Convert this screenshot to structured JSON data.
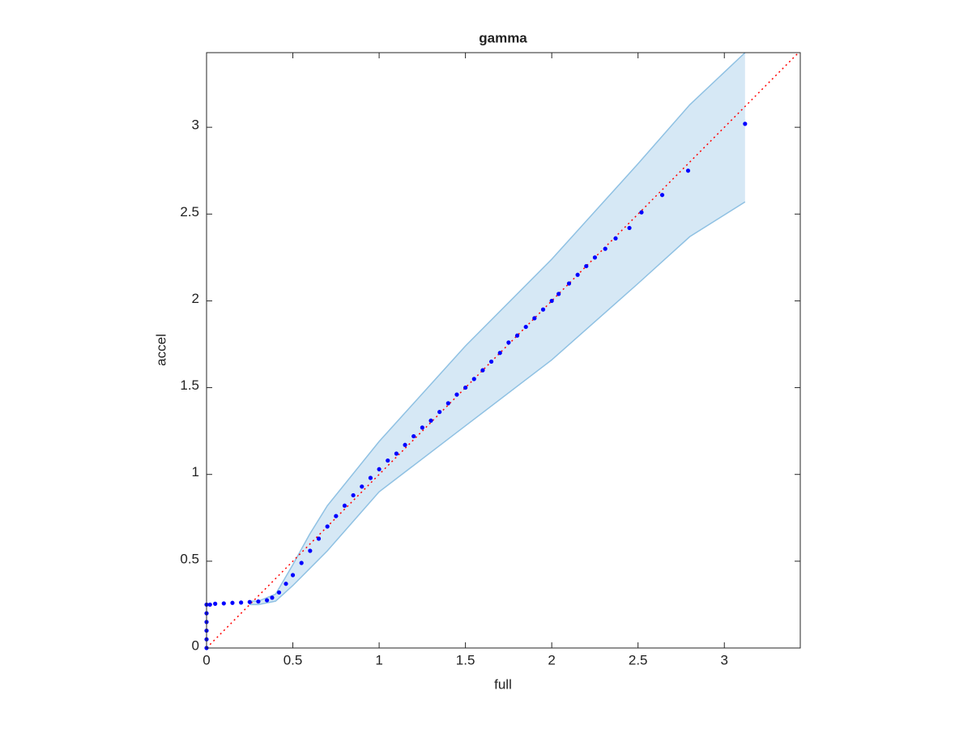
{
  "chart_data": {
    "type": "scatter",
    "title": "gamma",
    "x_label": "full",
    "y_label": "accel",
    "xlim": [
      0,
      3.44
    ],
    "ylim": [
      0,
      3.43
    ],
    "xticks": [
      0,
      0.5,
      1,
      1.5,
      2,
      2.5,
      3
    ],
    "yticks": [
      0,
      0.5,
      1,
      1.5,
      2,
      2.5,
      3
    ],
    "grid": false,
    "box": true,
    "points": {
      "color": "#0000ff",
      "x": [
        0,
        0,
        0,
        0,
        0,
        0,
        0.02,
        0.05,
        0.1,
        0.15,
        0.2,
        0.25,
        0.3,
        0.35,
        0.38,
        0.42,
        0.46,
        0.5,
        0.55,
        0.6,
        0.65,
        0.7,
        0.75,
        0.8,
        0.85,
        0.9,
        0.95,
        1.0,
        1.05,
        1.1,
        1.15,
        1.2,
        1.25,
        1.3,
        1.35,
        1.4,
        1.45,
        1.5,
        1.55,
        1.6,
        1.65,
        1.7,
        1.75,
        1.8,
        1.85,
        1.9,
        1.95,
        2.0,
        2.04,
        2.1,
        2.15,
        2.2,
        2.25,
        2.31,
        2.37,
        2.45,
        2.52,
        2.64,
        2.79,
        3.12
      ],
      "y": [
        0,
        0.05,
        0.1,
        0.15,
        0.2,
        0.25,
        0.25,
        0.255,
        0.257,
        0.26,
        0.262,
        0.265,
        0.268,
        0.275,
        0.29,
        0.32,
        0.37,
        0.42,
        0.49,
        0.56,
        0.63,
        0.7,
        0.76,
        0.82,
        0.88,
        0.93,
        0.98,
        1.03,
        1.08,
        1.12,
        1.17,
        1.22,
        1.27,
        1.31,
        1.36,
        1.41,
        1.46,
        1.5,
        1.55,
        1.6,
        1.65,
        1.7,
        1.76,
        1.8,
        1.85,
        1.9,
        1.95,
        2.0,
        2.04,
        2.1,
        2.15,
        2.2,
        2.25,
        2.3,
        2.36,
        2.42,
        2.51,
        2.61,
        2.75,
        3.02
      ]
    },
    "band": {
      "color": "#8fc1e3",
      "fill": "#d6e8f5",
      "x": [
        0.25,
        0.3,
        0.4,
        0.5,
        0.6,
        0.7,
        1.0,
        1.5,
        2.0,
        2.5,
        2.8,
        3.12
      ],
      "lower": [
        0.25,
        0.25,
        0.27,
        0.36,
        0.46,
        0.56,
        0.9,
        1.28,
        1.66,
        2.1,
        2.37,
        2.57
      ],
      "upper": [
        0.27,
        0.27,
        0.31,
        0.48,
        0.66,
        0.82,
        1.19,
        1.74,
        2.24,
        2.79,
        3.13,
        3.43
      ]
    },
    "identity_line": {
      "color": "#ff0000",
      "style": "dotted"
    }
  }
}
